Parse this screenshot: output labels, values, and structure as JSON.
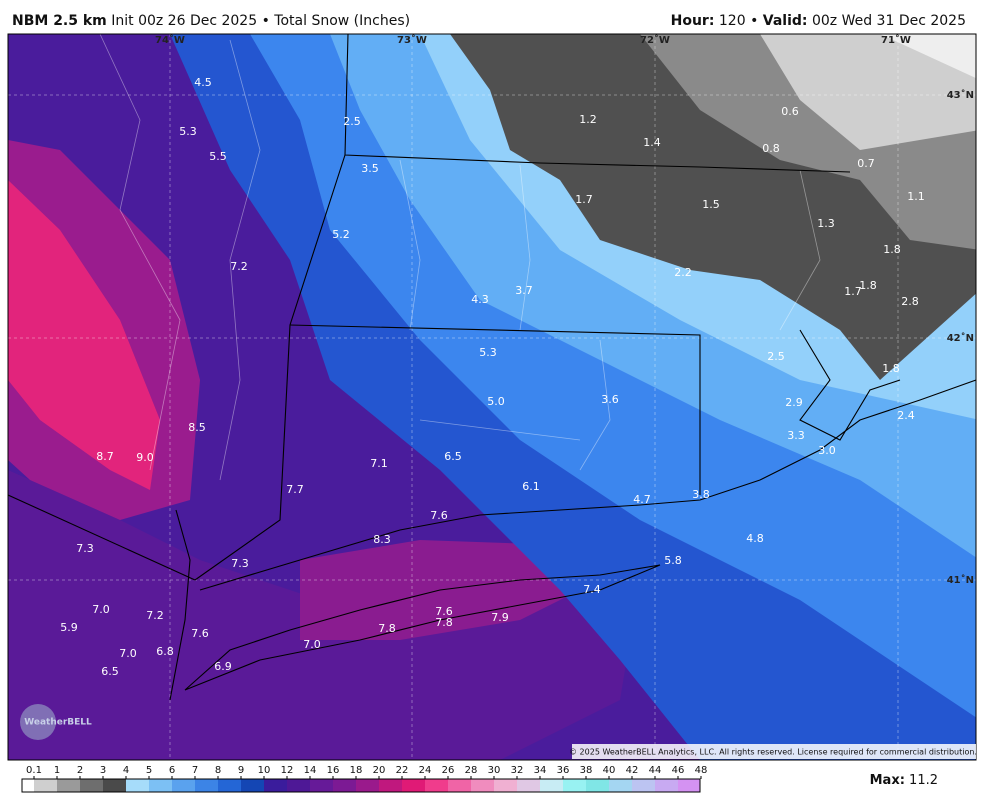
{
  "header": {
    "model": "NBM 2.5 km",
    "init": "Init 00z 26 Dec 2025",
    "separator": "•",
    "product": "Total Snow (Inches)",
    "hour_label": "Hour:",
    "hour": "120",
    "valid_label": "Valid:",
    "valid": "00z Wed 31 Dec 2025"
  },
  "map": {
    "longitude_labels": [
      "74˚W",
      "73˚W",
      "72˚W",
      "71˚W"
    ],
    "latitude_labels": [
      "43˚N",
      "42˚N",
      "41˚N"
    ],
    "snow_labels": [
      "4.5",
      "5.3",
      "5.5",
      "2.5",
      "3.5",
      "1.2",
      "1.4",
      "0.6",
      "0.8",
      "0.7",
      "1.7",
      "1.5",
      "1.1",
      "1.3",
      "5.2",
      "7.2",
      "2.2",
      "4.3",
      "3.7",
      "1.8",
      "1.8",
      "1.7",
      "2.8",
      "5.3",
      "2.5",
      "1.8",
      "3.6",
      "5.0",
      "2.9",
      "2.4",
      "8.5",
      "3.3",
      "3.0",
      "8.7",
      "9.0",
      "7.1",
      "6.5",
      "7.7",
      "6.1",
      "4.7",
      "3.8",
      "7.6",
      "8.3",
      "4.8",
      "7.3",
      "7.3",
      "5.8",
      "7.4",
      "7.0",
      "7.2",
      "7.6",
      "7.8",
      "7.9",
      "5.9",
      "7.6",
      "7.8",
      "7.0",
      "7.0",
      "6.8",
      "6.9",
      "6.5"
    ],
    "logo": "WeatherBELL",
    "copyright": "© 2025 WeatherBELL Analytics, LLC. All rights reserved. License required for commercial distribution."
  },
  "colorbar": {
    "labels": [
      0.1,
      1,
      2,
      3,
      4,
      5,
      6,
      7,
      8,
      9,
      10,
      12,
      14,
      16,
      18,
      20,
      22,
      24,
      26,
      28,
      30,
      32,
      34,
      36,
      38,
      40,
      42,
      44,
      46,
      48
    ],
    "colors": [
      "#ffffff",
      "#cfcfcf",
      "#9a9a9a",
      "#6e6e6e",
      "#4a4a4a",
      "#a6dcfa",
      "#7cc0f4",
      "#5aa2ee",
      "#3c84e6",
      "#2466d6",
      "#1446b4",
      "#3a1c9c",
      "#4e1896",
      "#661a98",
      "#7c1a94",
      "#9a1a8c",
      "#c0187e",
      "#e01a76",
      "#f03c8c",
      "#f064a6",
      "#f08cbe",
      "#f0b0d2",
      "#e0c8e4",
      "#c8ecf4",
      "#98f2f2",
      "#80e6e6",
      "#a4d6f2",
      "#bcc4f2",
      "#c8aaf2",
      "#d492f2"
    ]
  },
  "max": {
    "label": "Max:",
    "value": "11.2"
  }
}
